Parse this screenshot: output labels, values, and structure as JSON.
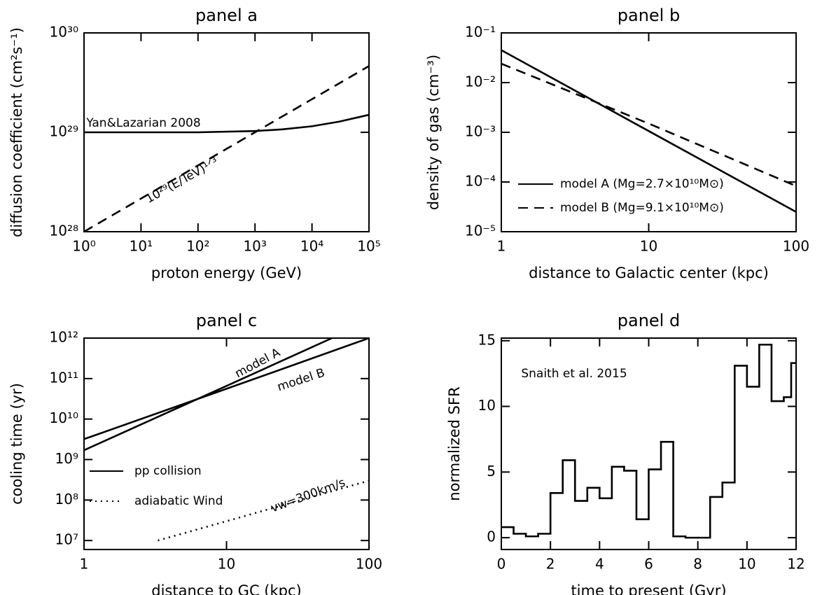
{
  "chart_data": [
    {
      "type": "line",
      "title": "panel a",
      "xlabel": "proton energy (GeV)",
      "ylabel": "diffusion coefficient (cm²s⁻¹)",
      "xscale": "log",
      "yscale": "log",
      "xlim": [
        1,
        100000
      ],
      "ylim": [
        1e+28,
        1e+30
      ],
      "xticks": [
        {
          "value": 1,
          "label": "10⁰"
        },
        {
          "value": 10,
          "label": "10¹"
        },
        {
          "value": 100,
          "label": "10²"
        },
        {
          "value": 1000,
          "label": "10³"
        },
        {
          "value": 10000,
          "label": "10⁴"
        },
        {
          "value": 100000,
          "label": "10⁵"
        }
      ],
      "yticks": [
        {
          "value": 1e+28,
          "label": "10²⁸"
        },
        {
          "value": 1e+29,
          "label": "10²⁹"
        },
        {
          "value": 1e+30,
          "label": "10³⁰"
        }
      ],
      "series": [
        {
          "name": "Yan&Lazarian 2008",
          "color": "#000000",
          "style": "solid",
          "x": [
            1,
            10,
            100,
            1000,
            3000,
            10000,
            30000,
            100000
          ],
          "values": [
            1e+29,
            1e+29,
            1e+29,
            1.03e+29,
            1.07e+29,
            1.15e+29,
            1.28e+29,
            1.5e+29
          ]
        },
        {
          "name": "10²⁹(E/TeV)¹ᐟ³",
          "color": "#000000",
          "style": "dashed",
          "x": [
            1,
            100000
          ],
          "values": [
            1e+28,
            4.64e+29
          ]
        }
      ]
    },
    {
      "type": "line",
      "title": "panel b",
      "xlabel": "distance to Galactic center (kpc)",
      "ylabel": "density of gas (cm⁻³)",
      "xscale": "log",
      "yscale": "log",
      "xlim": [
        1,
        100
      ],
      "ylim": [
        1e-05,
        0.1
      ],
      "xticks": [
        1,
        10,
        100
      ],
      "yticks": [
        {
          "value": 1e-05,
          "label": "10⁻⁵"
        },
        {
          "value": 0.0001,
          "label": "10⁻⁴"
        },
        {
          "value": 0.001,
          "label": "10⁻³"
        },
        {
          "value": 0.01,
          "label": "10⁻²"
        },
        {
          "value": 0.1,
          "label": "10⁻¹"
        }
      ],
      "legend_position": "lower left",
      "series": [
        {
          "name": "model A (Mg=2.7×10¹⁰M⊙)",
          "color": "#000000",
          "style": "solid",
          "x": [
            1,
            10,
            100
          ],
          "values": [
            0.045,
            0.00106,
            2.5e-05
          ]
        },
        {
          "name": "model B (Mg=9.1×10¹⁰M⊙)",
          "color": "#000000",
          "style": "dashed",
          "x": [
            1,
            10,
            100
          ],
          "values": [
            0.024,
            0.0015,
            8.3e-05
          ]
        }
      ]
    },
    {
      "type": "line",
      "title": "panel c",
      "xlabel": "distance to GC (kpc)",
      "ylabel": "cooling time (yr)",
      "xscale": "log",
      "yscale": "log",
      "xlim": [
        1,
        100
      ],
      "ylim": [
        6000000.0,
        1000000000000.0
      ],
      "xticks": [
        1,
        10,
        100
      ],
      "yticks": [
        {
          "value": 10000000.0,
          "label": "10⁷"
        },
        {
          "value": 100000000.0,
          "label": "10⁸"
        },
        {
          "value": 1000000000.0,
          "label": "10⁹"
        },
        {
          "value": 10000000000.0,
          "label": "10¹⁰"
        },
        {
          "value": 100000000000.0,
          "label": "10¹¹"
        },
        {
          "value": 1000000000000.0,
          "label": "10¹²"
        }
      ],
      "legend_position": "lower left",
      "legend": [
        {
          "label": "pp collision",
          "style": "solid"
        },
        {
          "label": "adiabatic Wind",
          "style": "dotted"
        }
      ],
      "series": [
        {
          "name": "model A",
          "color": "#000000",
          "style": "solid",
          "x": [
            1,
            10,
            55
          ],
          "values": [
            1700000000.0,
            66000000000.0,
            1000000000000.0
          ]
        },
        {
          "name": "model B",
          "color": "#000000",
          "style": "solid",
          "x": [
            1,
            10,
            100
          ],
          "values": [
            3200000000.0,
            56000000000.0,
            1000000000000.0
          ]
        },
        {
          "name": "vw=300km/s",
          "color": "#000000",
          "style": "dotted",
          "x": [
            3.3,
            10,
            100
          ],
          "values": [
            10000000.0,
            30000000.0,
            300000000.0
          ]
        }
      ]
    },
    {
      "type": "histogram",
      "title": "panel d",
      "xlabel": "time to present (Gyr)",
      "ylabel": "normalized SFR",
      "annotation": "Snaith et al. 2015",
      "xlim": [
        0,
        12
      ],
      "ylim": [
        -0.9,
        15.2
      ],
      "xticks": [
        0,
        2,
        4,
        6,
        8,
        10,
        12
      ],
      "yticks": [
        0,
        5,
        10,
        15
      ],
      "color": "#000000",
      "bins": [
        0,
        0.5,
        1,
        1.5,
        2,
        2.5,
        3,
        3.5,
        4,
        4.5,
        5,
        5.5,
        6,
        6.5,
        7,
        7.5,
        8,
        8.5,
        9,
        9.5,
        10,
        10.5,
        11,
        11.5,
        11.8,
        12
      ],
      "values": [
        0.8,
        0.3,
        0.1,
        0.3,
        3.4,
        5.9,
        2.8,
        3.8,
        3.0,
        5.4,
        5.1,
        1.4,
        5.2,
        7.3,
        0.1,
        0.0,
        0.0,
        3.1,
        4.2,
        13.1,
        11.5,
        14.7,
        10.4,
        10.7,
        13.3
      ]
    }
  ]
}
